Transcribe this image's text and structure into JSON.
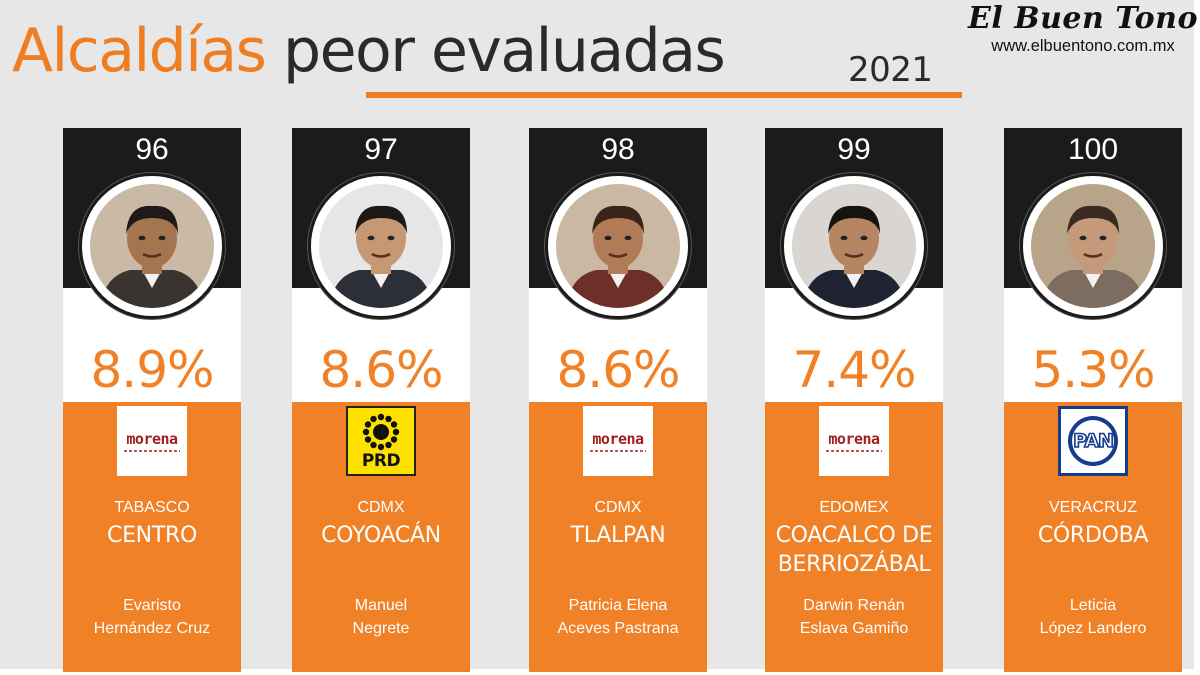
{
  "header": {
    "title_part1": "Alcaldías",
    "title_part2": "peor evaluadas",
    "year": "2021",
    "brand_name": "El Buen Tono",
    "brand_url": "www.elbuentono.com.mx"
  },
  "colors": {
    "accent": "#f18126",
    "dark": "#1b1b1b",
    "background": "#e7e7e8"
  },
  "chart_data": {
    "type": "bar",
    "title": "Alcaldías peor evaluadas 2021",
    "categories": [
      "CENTRO",
      "COYOACÁN",
      "TLALPAN",
      "COACALCO DE BERRIOZÁBAL",
      "CÓRDOBA"
    ],
    "series": [
      {
        "values": [
          8.9,
          8.6,
          8.6,
          7.4,
          5.3
        ]
      }
    ],
    "ranks": [
      "96",
      "97",
      "98",
      "99",
      "100"
    ]
  },
  "cards": [
    {
      "rank": "96",
      "pct": "8.9%",
      "party": "morena",
      "party_icon": "morena-logo-icon",
      "state": "TABASCO",
      "muni_line1": "CENTRO",
      "muni_line2": "",
      "mayor_line1": "Evaristo",
      "mayor_line2": "Hernández Cruz",
      "photo_bg": "#c9b9a6",
      "skin": "#a4754f",
      "hair": "#1f1a17",
      "suit": "#3a3431"
    },
    {
      "rank": "97",
      "pct": "8.6%",
      "party": "PRD",
      "party_icon": "prd-logo-icon",
      "state": "CDMX",
      "muni_line1": "COYOACÁN",
      "muni_line2": "",
      "mayor_line1": "Manuel",
      "mayor_line2": "Negrete",
      "photo_bg": "#e6e6e6",
      "skin": "#c79874",
      "hair": "#1c1a19",
      "suit": "#2c2f38"
    },
    {
      "rank": "98",
      "pct": "8.6%",
      "party": "morena",
      "party_icon": "morena-logo-icon",
      "state": "CDMX",
      "muni_line1": "TLALPAN",
      "muni_line2": "",
      "mayor_line1": "Patricia Elena",
      "mayor_line2": "Aceves Pastrana",
      "photo_bg": "#cbb8a2",
      "skin": "#b27b58",
      "hair": "#3a241a",
      "suit": "#6e2f2a"
    },
    {
      "rank": "99",
      "pct": "7.4%",
      "party": "morena",
      "party_icon": "morena-logo-icon",
      "state": "EDOMEX",
      "muni_line1": "COACALCO DE",
      "muni_line2": "BERRIOZÁBAL",
      "mayor_line1": "Darwin Renán",
      "mayor_line2": "Eslava Gamiño",
      "photo_bg": "#d9d5d0",
      "skin": "#b58661",
      "hair": "#17130f",
      "suit": "#1f2230"
    },
    {
      "rank": "100",
      "pct": "5.3%",
      "party": "PAN",
      "party_icon": "pan-logo-icon",
      "state": "VERACRUZ",
      "muni_line1": "CÓRDOBA",
      "muni_line2": "",
      "mayor_line1": "Leticia",
      "mayor_line2": "López Landero",
      "photo_bg": "#b8a488",
      "skin": "#c49a7a",
      "hair": "#3b2a22",
      "suit": "#7d6c60"
    }
  ]
}
